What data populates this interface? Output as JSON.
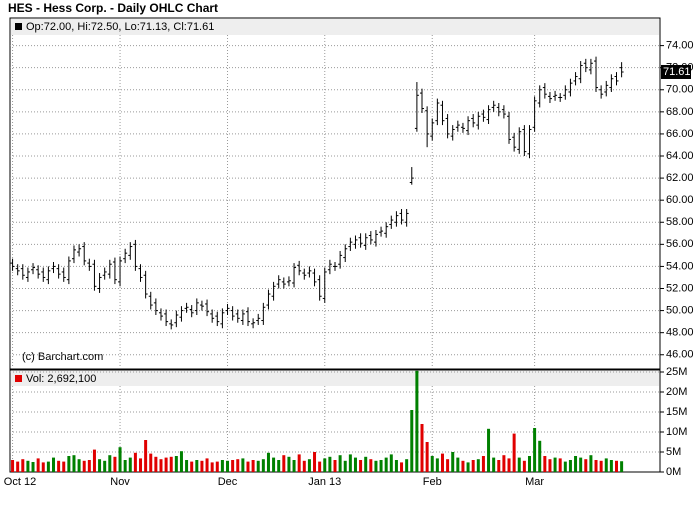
{
  "chart_data": {
    "type": "ohlc",
    "title": "HES - Hess Corp. - Daily OHLC Chart",
    "legend": "Op:72.00, Hi:72.50, Lo:71.13, Cl:71.61",
    "last_price_label": "71.61",
    "copyright": "(c) Barchart.com",
    "color": "#000000",
    "grid": true,
    "categories": [
      "Oct 12",
      null,
      null,
      null,
      null,
      null,
      null,
      null,
      null,
      null,
      null,
      null,
      null,
      null,
      null,
      null,
      null,
      null,
      null,
      null,
      null,
      "Nov",
      null,
      null,
      null,
      null,
      null,
      null,
      null,
      null,
      null,
      null,
      null,
      null,
      null,
      null,
      null,
      null,
      null,
      null,
      null,
      null,
      "Dec",
      null,
      null,
      null,
      null,
      null,
      null,
      null,
      null,
      null,
      null,
      null,
      null,
      null,
      null,
      null,
      null,
      null,
      null,
      "Jan 13",
      null,
      null,
      null,
      null,
      null,
      null,
      null,
      null,
      null,
      null,
      null,
      null,
      null,
      null,
      null,
      null,
      null,
      null,
      null,
      null,
      "Feb",
      null,
      null,
      null,
      null,
      null,
      null,
      null,
      null,
      null,
      null,
      null,
      null,
      null,
      null,
      null,
      null,
      null,
      null,
      null,
      "Mar",
      null,
      null,
      null,
      null,
      null,
      null,
      null,
      null,
      null,
      null,
      null,
      null,
      null,
      null,
      null,
      null,
      null
    ],
    "ohlc": [
      [
        54.3,
        54.7,
        53.6,
        54.0
      ],
      [
        53.8,
        54.2,
        53.2,
        53.6
      ],
      [
        53.8,
        54.2,
        52.8,
        53.2
      ],
      [
        53.0,
        53.9,
        52.6,
        53.5
      ],
      [
        53.7,
        54.3,
        53.3,
        53.9
      ],
      [
        53.7,
        54.1,
        52.9,
        53.3
      ],
      [
        53.5,
        53.9,
        52.6,
        53.0
      ],
      [
        52.8,
        54.0,
        52.4,
        53.6
      ],
      [
        53.8,
        54.4,
        53.4,
        54.0
      ],
      [
        53.8,
        54.2,
        52.9,
        53.3
      ],
      [
        53.5,
        53.9,
        52.6,
        53.0
      ],
      [
        52.8,
        54.9,
        52.4,
        54.5
      ],
      [
        54.7,
        55.9,
        54.3,
        55.5
      ],
      [
        55.3,
        56.0,
        54.9,
        55.6
      ],
      [
        55.8,
        56.2,
        54.1,
        54.5
      ],
      [
        54.3,
        54.7,
        53.6,
        54.0
      ],
      [
        54.2,
        54.6,
        51.8,
        52.2
      ],
      [
        52.0,
        53.4,
        51.6,
        53.0
      ],
      [
        53.2,
        53.9,
        52.8,
        53.5
      ],
      [
        53.3,
        54.6,
        52.9,
        54.2
      ],
      [
        54.4,
        54.8,
        52.4,
        52.8
      ],
      [
        52.6,
        54.9,
        52.2,
        54.5
      ],
      [
        54.7,
        55.6,
        54.3,
        55.2
      ],
      [
        55.0,
        56.2,
        54.6,
        55.8
      ],
      [
        56.0,
        56.4,
        53.6,
        54.0
      ],
      [
        53.8,
        54.2,
        52.6,
        53.0
      ],
      [
        53.2,
        53.6,
        51.1,
        51.5
      ],
      [
        51.3,
        51.7,
        50.1,
        50.5
      ],
      [
        50.7,
        51.1,
        49.6,
        50.0
      ],
      [
        49.8,
        50.2,
        49.1,
        49.5
      ],
      [
        49.7,
        50.1,
        48.6,
        49.0
      ],
      [
        48.8,
        49.2,
        48.3,
        48.7
      ],
      [
        48.9,
        50.0,
        48.5,
        49.6
      ],
      [
        49.4,
        50.4,
        49.0,
        50.0
      ],
      [
        50.2,
        50.7,
        49.8,
        50.3
      ],
      [
        50.1,
        50.5,
        49.4,
        49.8
      ],
      [
        50.0,
        51.1,
        49.6,
        50.7
      ],
      [
        50.5,
        50.9,
        50.0,
        50.4
      ],
      [
        50.6,
        51.0,
        49.5,
        49.9
      ],
      [
        49.7,
        50.1,
        48.9,
        49.3
      ],
      [
        49.5,
        49.9,
        48.6,
        49.0
      ],
      [
        48.8,
        50.2,
        48.4,
        49.8
      ],
      [
        50.0,
        50.6,
        49.6,
        50.2
      ],
      [
        50.0,
        50.4,
        49.1,
        49.5
      ],
      [
        49.7,
        50.1,
        48.9,
        49.3
      ],
      [
        49.1,
        50.1,
        48.7,
        49.7
      ],
      [
        49.9,
        50.3,
        48.6,
        49.0
      ],
      [
        48.8,
        49.3,
        48.4,
        48.9
      ],
      [
        49.1,
        49.7,
        48.7,
        49.3
      ],
      [
        49.1,
        50.7,
        48.7,
        50.3
      ],
      [
        50.5,
        51.9,
        50.1,
        51.5
      ],
      [
        51.3,
        52.6,
        50.9,
        52.2
      ],
      [
        52.4,
        53.2,
        52.0,
        52.8
      ],
      [
        52.6,
        53.0,
        52.0,
        52.4
      ],
      [
        52.6,
        53.1,
        52.2,
        52.7
      ],
      [
        52.5,
        54.3,
        52.1,
        53.9
      ],
      [
        54.1,
        54.5,
        53.2,
        53.6
      ],
      [
        53.4,
        53.8,
        52.8,
        53.2
      ],
      [
        53.4,
        54.0,
        53.0,
        53.6
      ],
      [
        53.4,
        53.8,
        52.2,
        52.6
      ],
      [
        52.8,
        53.2,
        50.9,
        51.3
      ],
      [
        51.1,
        53.9,
        50.7,
        53.5
      ],
      [
        53.7,
        54.6,
        53.3,
        54.2
      ],
      [
        54.0,
        54.4,
        53.6,
        54.0
      ],
      [
        54.2,
        55.4,
        53.8,
        55.0
      ],
      [
        54.8,
        56.0,
        54.4,
        55.6
      ],
      [
        55.8,
        56.6,
        55.4,
        56.2
      ],
      [
        56.0,
        56.8,
        55.6,
        56.4
      ],
      [
        56.6,
        57.0,
        55.7,
        56.1
      ],
      [
        55.9,
        57.0,
        55.5,
        56.6
      ],
      [
        56.8,
        57.2,
        56.0,
        56.4
      ],
      [
        56.2,
        57.3,
        55.8,
        56.9
      ],
      [
        57.1,
        57.6,
        56.7,
        57.2
      ],
      [
        57.0,
        58.0,
        56.6,
        57.6
      ],
      [
        57.8,
        58.6,
        57.4,
        58.2
      ],
      [
        58.0,
        59.0,
        57.6,
        58.6
      ],
      [
        58.8,
        59.2,
        57.8,
        58.2
      ],
      [
        58.0,
        59.2,
        57.6,
        58.8
      ],
      [
        61.6,
        63.0,
        61.4,
        62.0
      ],
      [
        66.5,
        70.7,
        66.2,
        69.5
      ],
      [
        69.7,
        70.1,
        67.9,
        68.3
      ],
      [
        68.1,
        68.5,
        64.8,
        66.0
      ],
      [
        65.8,
        67.4,
        65.4,
        67.0
      ],
      [
        67.2,
        69.2,
        66.8,
        68.8
      ],
      [
        68.6,
        69.0,
        66.8,
        67.2
      ],
      [
        67.4,
        67.8,
        65.6,
        66.0
      ],
      [
        65.8,
        66.8,
        65.4,
        66.4
      ],
      [
        66.6,
        67.2,
        66.2,
        66.8
      ],
      [
        66.6,
        67.0,
        66.1,
        66.5
      ],
      [
        66.3,
        67.6,
        65.9,
        67.2
      ],
      [
        67.4,
        67.8,
        66.6,
        67.0
      ],
      [
        66.8,
        68.0,
        66.4,
        67.6
      ],
      [
        67.8,
        68.2,
        67.1,
        67.5
      ],
      [
        67.3,
        68.6,
        66.9,
        68.2
      ],
      [
        68.4,
        69.0,
        68.0,
        68.6
      ],
      [
        68.4,
        68.8,
        67.6,
        68.0
      ],
      [
        68.2,
        68.6,
        67.4,
        67.8
      ],
      [
        67.6,
        68.0,
        65.1,
        65.5
      ],
      [
        65.7,
        66.1,
        64.4,
        64.8
      ],
      [
        64.6,
        66.6,
        64.2,
        66.2
      ],
      [
        66.4,
        66.8,
        64.0,
        64.4
      ],
      [
        64.2,
        66.8,
        63.8,
        66.4
      ],
      [
        66.6,
        69.4,
        66.2,
        69.0
      ],
      [
        68.8,
        70.4,
        68.4,
        70.0
      ],
      [
        70.2,
        70.6,
        69.2,
        69.6
      ],
      [
        69.4,
        69.8,
        68.8,
        69.2
      ],
      [
        69.4,
        69.9,
        69.0,
        69.5
      ],
      [
        69.3,
        69.7,
        68.9,
        69.3
      ],
      [
        69.5,
        70.4,
        69.1,
        70.0
      ],
      [
        69.8,
        71.0,
        69.4,
        70.6
      ],
      [
        70.8,
        71.6,
        70.4,
        71.2
      ],
      [
        71.0,
        72.6,
        70.6,
        72.2
      ],
      [
        72.4,
        72.8,
        71.6,
        72.0
      ],
      [
        71.8,
        72.8,
        71.4,
        72.4
      ],
      [
        72.6,
        73.0,
        69.8,
        70.2
      ],
      [
        70.0,
        70.4,
        69.2,
        69.6
      ],
      [
        69.8,
        70.8,
        69.4,
        70.4
      ],
      [
        70.2,
        71.4,
        69.8,
        71.0
      ],
      [
        71.2,
        71.6,
        70.4,
        70.8
      ],
      [
        72.0,
        72.5,
        71.13,
        71.61
      ]
    ],
    "ylim": [
      44.8,
      76.5
    ],
    "yticks": [
      {
        "value": 46,
        "label": "46.00"
      },
      {
        "value": 48,
        "label": "48.00"
      },
      {
        "value": 50,
        "label": "50.00"
      },
      {
        "value": 52,
        "label": "52.00"
      },
      {
        "value": 54,
        "label": "54.00"
      },
      {
        "value": 56,
        "label": "56.00"
      },
      {
        "value": 58,
        "label": "58.00"
      },
      {
        "value": 60,
        "label": "60.00"
      },
      {
        "value": 62,
        "label": "62.00"
      },
      {
        "value": 64,
        "label": "64.00"
      },
      {
        "value": 66,
        "label": "66.00"
      },
      {
        "value": 68,
        "label": "68.00"
      },
      {
        "value": 70,
        "label": "70.00"
      },
      {
        "value": 72,
        "label": "72.00"
      },
      {
        "value": 74,
        "label": "74.00"
      }
    ],
    "volume": {
      "legend": "Vol: 2,692,100",
      "up_color": "#008000",
      "down_color": "#e00000",
      "values": [
        3.0,
        2.6,
        3.2,
        2.8,
        2.5,
        3.4,
        2.4,
        2.6,
        3.6,
        2.8,
        2.6,
        4.0,
        4.2,
        3.2,
        2.8,
        3.0,
        5.6,
        3.2,
        2.8,
        4.2,
        3.8,
        6.2,
        3.0,
        3.6,
        4.8,
        3.4,
        8.0,
        4.6,
        3.8,
        3.2,
        3.6,
        3.8,
        4.0,
        5.2,
        3.0,
        2.6,
        3.0,
        2.8,
        3.4,
        2.4,
        2.6,
        3.0,
        2.8,
        3.0,
        3.2,
        3.4,
        2.6,
        3.0,
        2.8,
        3.2,
        4.8,
        3.6,
        3.0,
        4.2,
        3.8,
        3.0,
        4.4,
        2.8,
        3.2,
        5.0,
        2.6,
        3.4,
        3.8,
        3.0,
        4.2,
        2.8,
        4.4,
        3.6,
        3.0,
        3.8,
        3.2,
        2.8,
        3.0,
        3.6,
        4.4,
        3.0,
        2.4,
        3.2,
        15.5,
        25.3,
        12.0,
        7.5,
        4.0,
        3.4,
        4.6,
        3.2,
        5.0,
        3.6,
        2.8,
        2.4,
        3.0,
        3.2,
        4.0,
        10.8,
        3.6,
        3.0,
        4.2,
        3.4,
        9.6,
        3.6,
        2.8,
        4.0,
        11.0,
        7.8,
        4.0,
        3.2,
        3.6,
        3.4,
        2.6,
        3.0,
        4.0,
        3.6,
        3.2,
        4.2,
        3.0,
        2.8,
        3.4,
        3.0,
        2.8,
        2.6921
      ],
      "ylim": [
        0,
        25.5
      ],
      "yticks": [
        {
          "value": 0,
          "label": "0M"
        },
        {
          "value": 5,
          "label": "5M"
        },
        {
          "value": 10,
          "label": "10M"
        },
        {
          "value": 15,
          "label": "15M"
        },
        {
          "value": 20,
          "label": "20M"
        },
        {
          "value": 25,
          "label": "25M"
        }
      ]
    }
  }
}
